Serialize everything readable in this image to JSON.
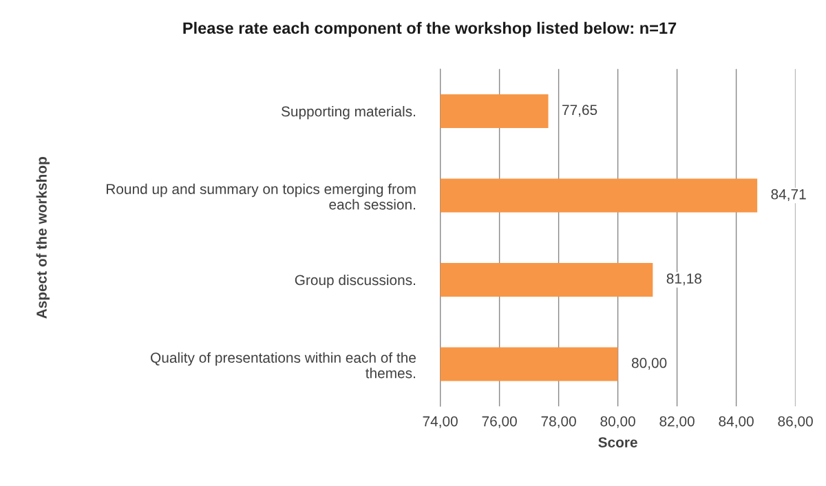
{
  "chart_data": {
    "type": "bar",
    "orientation": "horizontal",
    "title": "Please rate each component of the workshop listed below: n=17",
    "xlabel": "Score",
    "ylabel": "Aspect of the workshop",
    "categories": [
      "Supporting materials.",
      "Round up and summary on topics emerging from\neach session.",
      "Group discussions.",
      "Quality of presentations within each of the\nthemes."
    ],
    "values": [
      77.65,
      84.71,
      81.18,
      80.0
    ],
    "value_labels": [
      "77,65",
      "84,71",
      "81,18",
      "80,00"
    ],
    "color": "#f79646",
    "xlim": [
      74,
      86
    ],
    "xticks": [
      {
        "value": 74,
        "label": "74,00"
      },
      {
        "value": 76,
        "label": "76,00"
      },
      {
        "value": 78,
        "label": "78,00"
      },
      {
        "value": 80,
        "label": "80,00"
      },
      {
        "value": 82,
        "label": "82,00"
      },
      {
        "value": 84,
        "label": "84,00"
      },
      {
        "value": 86,
        "label": "86,00"
      }
    ],
    "grid": "x",
    "legend": false
  }
}
